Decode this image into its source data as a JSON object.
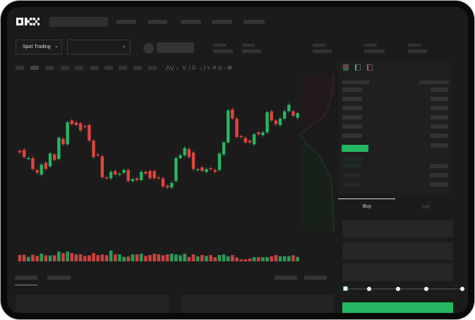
{
  "brand": {
    "logo": "OKX"
  },
  "market_selector": {
    "label": "Spot Trading",
    "chevron": "chevron-down-icon"
  },
  "pair_selector": {
    "chevron": "chevron-down-icon"
  },
  "trade_panel": {
    "tabs": [
      {
        "label": "Buy",
        "active": true
      },
      {
        "label": "Sell",
        "active": false
      }
    ],
    "leverage_slider": {
      "value": 0,
      "stops": 5
    }
  },
  "colors": {
    "up": "#25b761",
    "down": "#e0443f",
    "background": "#1b1b1b"
  },
  "chart_data": {
    "type": "candlestick",
    "candles": [
      [
        42,
        40
      ],
      [
        43,
        35
      ],
      [
        33,
        34
      ],
      [
        34,
        22
      ],
      [
        21,
        18
      ],
      [
        16,
        27
      ],
      [
        29,
        22
      ],
      [
        25,
        39
      ],
      [
        38,
        32
      ],
      [
        33,
        56
      ],
      [
        55,
        49
      ],
      [
        49,
        73
      ],
      [
        75,
        71
      ],
      [
        73,
        70
      ],
      [
        72,
        64
      ],
      [
        69,
        68
      ],
      [
        70,
        53
      ],
      [
        53,
        35
      ],
      [
        38,
        37
      ],
      [
        36,
        13
      ],
      [
        13,
        12
      ],
      [
        12,
        19
      ],
      [
        20,
        16
      ],
      [
        16,
        17
      ],
      [
        18,
        21
      ],
      [
        21,
        9
      ],
      [
        9,
        11
      ],
      [
        12,
        10
      ],
      [
        10,
        19
      ],
      [
        19,
        17
      ],
      [
        20,
        12
      ],
      [
        20,
        12
      ],
      [
        13,
        12
      ],
      [
        12,
        3
      ],
      [
        4,
        2
      ],
      [
        2,
        7
      ],
      [
        9,
        34
      ],
      [
        34,
        37
      ],
      [
        37,
        45
      ],
      [
        44,
        35
      ],
      [
        40,
        22
      ],
      [
        21,
        22
      ],
      [
        24,
        20
      ],
      [
        19,
        22
      ],
      [
        23,
        22
      ],
      [
        21,
        19
      ],
      [
        21,
        39
      ],
      [
        38,
        51
      ],
      [
        51,
        86
      ],
      [
        87,
        77
      ],
      [
        77,
        57
      ],
      [
        58,
        57
      ],
      [
        56,
        51
      ],
      [
        53,
        51
      ],
      [
        49,
        60
      ],
      [
        62,
        60
      ],
      [
        59,
        62
      ],
      [
        62,
        84
      ],
      [
        85,
        75
      ],
      [
        75,
        71
      ],
      [
        70,
        77
      ],
      [
        77,
        85
      ],
      [
        85,
        92
      ],
      [
        85,
        80
      ],
      [
        78,
        83
      ]
    ],
    "volumes": [
      36,
      38,
      24,
      38,
      30,
      45,
      34,
      33,
      34,
      58,
      48,
      58,
      48,
      40,
      40,
      30,
      34,
      48,
      35,
      40,
      35,
      64,
      40,
      40,
      24,
      26,
      40,
      40,
      44,
      30,
      36,
      44,
      40,
      34,
      40,
      44,
      40,
      34,
      44,
      24,
      40,
      28,
      36,
      30,
      36,
      22,
      36,
      40,
      28,
      36,
      20,
      8,
      8,
      14,
      22,
      22,
      22,
      22,
      28,
      36,
      28,
      28,
      28,
      34,
      24
    ]
  }
}
